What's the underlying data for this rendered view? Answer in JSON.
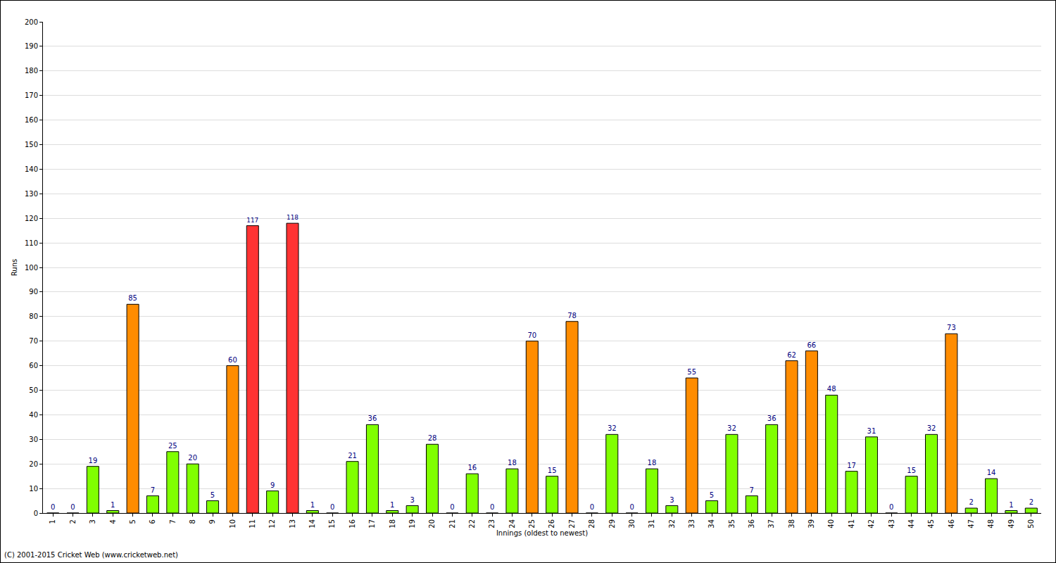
{
  "chart_data": {
    "type": "bar",
    "x_label": "Innings (oldest to newest)",
    "y_label": "Runs",
    "annotations": [
      "(C) 2001-2015 Cricket Web (www.cricketweb.net)"
    ],
    "categories": [
      "1",
      "2",
      "3",
      "4",
      "5",
      "6",
      "7",
      "8",
      "9",
      "10",
      "11",
      "12",
      "13",
      "14",
      "15",
      "16",
      "17",
      "18",
      "19",
      "20",
      "21",
      "22",
      "23",
      "24",
      "25",
      "26",
      "27",
      "28",
      "29",
      "30",
      "31",
      "32",
      "33",
      "34",
      "35",
      "36",
      "37",
      "38",
      "39",
      "40",
      "41",
      "42",
      "43",
      "44",
      "45",
      "46",
      "47",
      "48",
      "49",
      "50"
    ],
    "values": [
      0,
      0,
      19,
      1,
      85,
      7,
      25,
      20,
      5,
      60,
      117,
      9,
      118,
      1,
      0,
      21,
      36,
      1,
      3,
      28,
      0,
      16,
      0,
      18,
      70,
      15,
      78,
      0,
      32,
      0,
      18,
      3,
      55,
      5,
      32,
      7,
      36,
      62,
      66,
      48,
      17,
      31,
      0,
      15,
      32,
      73,
      2,
      14,
      1,
      2
    ],
    "colors": [
      "#80ff00",
      "#80ff00",
      "#80ff00",
      "#80ff00",
      "#ff8c00",
      "#80ff00",
      "#80ff00",
      "#80ff00",
      "#80ff00",
      "#ff8c00",
      "#ff3333",
      "#80ff00",
      "#ff3333",
      "#80ff00",
      "#80ff00",
      "#80ff00",
      "#80ff00",
      "#80ff00",
      "#80ff00",
      "#80ff00",
      "#80ff00",
      "#80ff00",
      "#80ff00",
      "#80ff00",
      "#ff8c00",
      "#80ff00",
      "#ff8c00",
      "#80ff00",
      "#80ff00",
      "#80ff00",
      "#80ff00",
      "#80ff00",
      "#ff8c00",
      "#80ff00",
      "#80ff00",
      "#80ff00",
      "#80ff00",
      "#ff8c00",
      "#ff8c00",
      "#80ff00",
      "#80ff00",
      "#80ff00",
      "#80ff00",
      "#80ff00",
      "#80ff00",
      "#ff8c00",
      "#80ff00",
      "#80ff00",
      "#80ff00",
      "#80ff00"
    ],
    "ylim": [
      0,
      200
    ],
    "yticks": [
      0,
      10,
      20,
      30,
      40,
      50,
      60,
      70,
      80,
      90,
      100,
      110,
      120,
      130,
      140,
      150,
      160,
      170,
      180,
      190,
      200
    ],
    "grid": true,
    "data_labels": true
  }
}
